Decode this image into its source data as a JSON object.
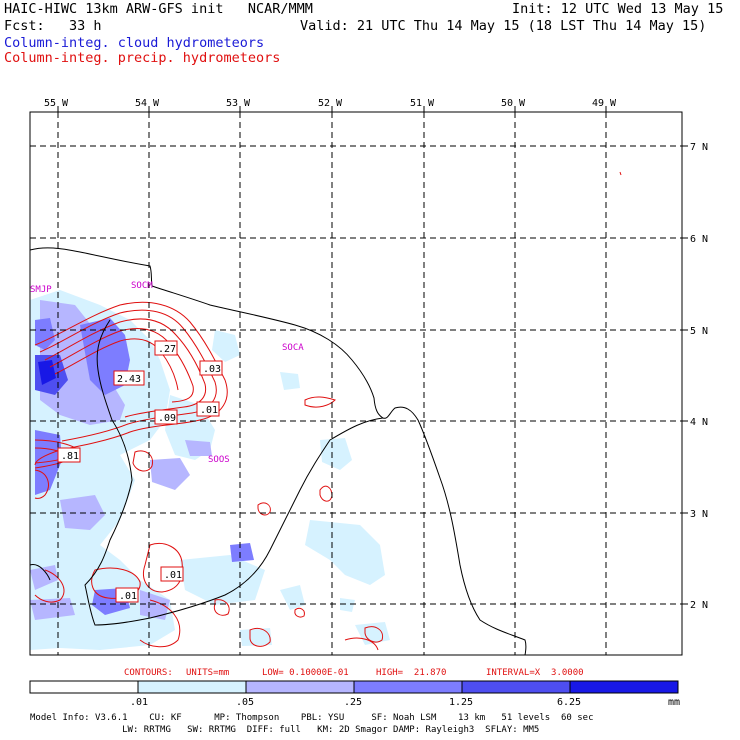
{
  "header": {
    "model_title": "HAIC-HIWC 13km ARW-GFS init   NCAR/MMM",
    "init_time": "Init: 12 UTC Wed 13 May 15",
    "forecast": "Fcst:   33 h",
    "valid_time": "Valid: 21 UTC Thu 14 May 15 (18 LST Thu 14 May 15)",
    "field_cloud": "Column-integ. cloud hydrometeors",
    "field_precip": "Column-integ. precip. hydrometeors"
  },
  "map": {
    "lon_labels": [
      "55 W",
      "54 W",
      "53 W",
      "52 W",
      "51 W",
      "50 W",
      "49 W"
    ],
    "lat_labels": [
      "7 N",
      "6 N",
      "5 N",
      "4 N",
      "3 N",
      "2 N"
    ],
    "stations": [
      "SMJP",
      "SOCM",
      "SOCA",
      "SOOS"
    ],
    "contour_labels": [
      ".27",
      ".03",
      "2.43",
      ".09",
      ".01",
      ".81",
      ".01",
      ".01"
    ]
  },
  "contours_info": {
    "contours": "CONTOURS:",
    "units": "UNITS=mm",
    "low": "LOW= 0.10000E-01",
    "high": "HIGH=  21.870",
    "interval": "INTERVAL=X  3.0000"
  },
  "colorbar": {
    "labels": [
      ".01",
      ".05",
      ".25",
      "1.25",
      "6.25"
    ],
    "unit": "mm",
    "colors": [
      "#ffffff",
      "#d6f2ff",
      "#b6b6ff",
      "#7d7dff",
      "#4e4ef0",
      "#1818e6"
    ]
  },
  "model_info": {
    "line1": "Model Info: V3.6.1    CU: KF      MP: Thompson    PBL: YSU     SF: Noah LSM    13 km   51 levels  60 sec",
    "line2": "                 LW: RRTMG   SW: RRTMG  DIFF: full   KM: 2D Smagor DAMP: Rayleigh3  SFLAY: MM5"
  }
}
